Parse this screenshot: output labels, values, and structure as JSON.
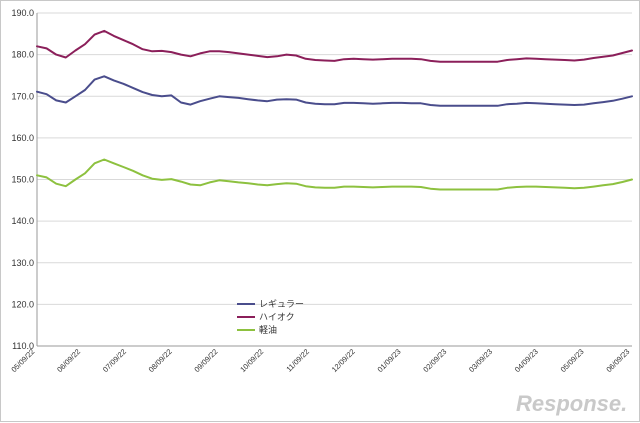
{
  "chart_data": {
    "type": "line",
    "title": "",
    "xlabel": "",
    "ylabel": "",
    "ylim": [
      110,
      190
    ],
    "yticks": [
      "110.0",
      "120.0",
      "130.0",
      "140.0",
      "150.0",
      "160.0",
      "170.0",
      "180.0",
      "190.0"
    ],
    "grid": "horizontal",
    "legend_position": "bottom-center",
    "x_tick_labels": [
      "05/09/22",
      "06/09/22",
      "07/09/22",
      "08/09/22",
      "09/09/22",
      "10/09/22",
      "11/09/22",
      "12/09/22",
      "01/09/23",
      "02/09/23",
      "03/09/23",
      "04/09/23",
      "05/09/23",
      "06/09/23"
    ],
    "series": [
      {
        "name": "レギュラー",
        "color": "#4a4d8c",
        "values": [
          171.1,
          170.5,
          169.0,
          168.5,
          170.0,
          171.5,
          174.0,
          174.8,
          173.8,
          173.0,
          172.0,
          171.0,
          170.3,
          170.0,
          170.2,
          168.5,
          168.0,
          168.8,
          169.4,
          170.0,
          169.8,
          169.6,
          169.3,
          169.0,
          168.8,
          169.2,
          169.3,
          169.2,
          168.5,
          168.2,
          168.1,
          168.1,
          168.4,
          168.4,
          168.3,
          168.2,
          168.3,
          168.4,
          168.4,
          168.3,
          168.3,
          167.9,
          167.7,
          167.7,
          167.7,
          167.7,
          167.7,
          167.7,
          167.7,
          168.1,
          168.2,
          168.4,
          168.3,
          168.2,
          168.1,
          168.0,
          167.9,
          168.0,
          168.3,
          168.6,
          168.9,
          169.4,
          170.0
        ]
      },
      {
        "name": "ハイオク",
        "color": "#8b1f5a",
        "values": [
          182.0,
          181.5,
          180.0,
          179.3,
          181.0,
          182.5,
          184.8,
          185.7,
          184.5,
          183.5,
          182.5,
          181.3,
          180.8,
          180.9,
          180.6,
          180.0,
          179.6,
          180.3,
          180.8,
          180.8,
          180.6,
          180.3,
          180.0,
          179.7,
          179.4,
          179.6,
          180.0,
          179.8,
          179.0,
          178.7,
          178.6,
          178.5,
          178.9,
          179.0,
          178.9,
          178.8,
          178.9,
          179.0,
          179.0,
          179.0,
          178.9,
          178.5,
          178.3,
          178.3,
          178.3,
          178.3,
          178.3,
          178.3,
          178.3,
          178.7,
          178.9,
          179.1,
          179.0,
          178.9,
          178.8,
          178.7,
          178.6,
          178.8,
          179.2,
          179.5,
          179.8,
          180.4,
          181.0
        ]
      },
      {
        "name": "軽油",
        "color": "#8dc13f",
        "values": [
          151.0,
          150.5,
          149.0,
          148.4,
          150.0,
          151.5,
          153.9,
          154.8,
          153.9,
          153.0,
          152.1,
          151.0,
          150.2,
          149.9,
          150.1,
          149.5,
          148.8,
          148.6,
          149.3,
          149.8,
          149.6,
          149.3,
          149.1,
          148.8,
          148.6,
          148.9,
          149.1,
          149.0,
          148.4,
          148.1,
          148.0,
          148.0,
          148.3,
          148.3,
          148.2,
          148.1,
          148.2,
          148.3,
          148.3,
          148.3,
          148.2,
          147.8,
          147.6,
          147.6,
          147.6,
          147.6,
          147.6,
          147.6,
          147.6,
          148.0,
          148.2,
          148.3,
          148.3,
          148.2,
          148.1,
          148.0,
          147.9,
          148.0,
          148.3,
          148.6,
          148.9,
          149.4,
          150.0
        ]
      }
    ]
  },
  "watermark": "Response."
}
